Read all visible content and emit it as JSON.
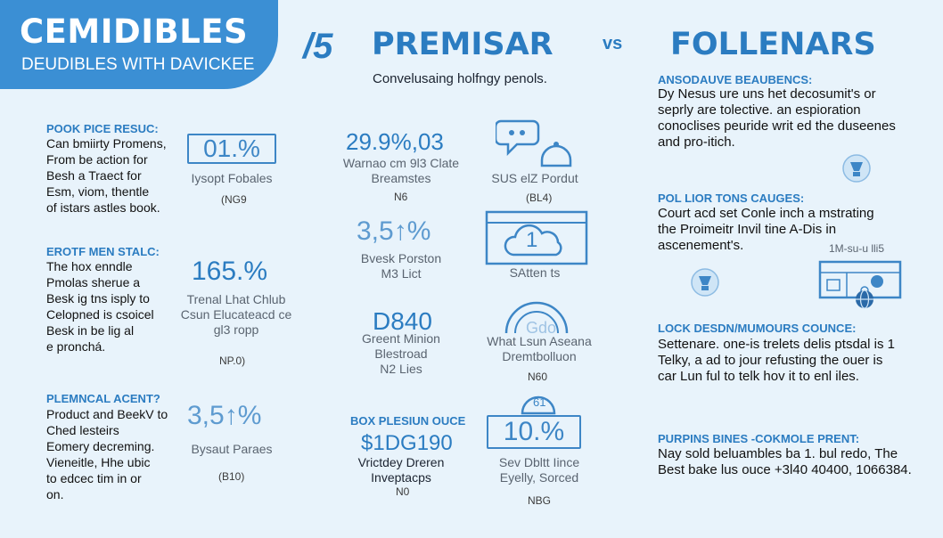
{
  "header": {
    "banner_title": "CEMIDIBLES",
    "banner_subtitle": "DEUDIBLES WITH DAVICKEE",
    "vs_big": "/5",
    "left_title": "PREMISAR",
    "vs_small": "vs",
    "right_title": "FOLLENARS",
    "subtitle": "Convelusaing holfngy penols."
  },
  "left_sections": [
    {
      "heading": "POOK PICE RESUC:",
      "lines": [
        "Can bmiirty Promens,",
        "From be action for",
        "Besh a Traect for",
        "Esm, viom, thentle",
        "of istars astles book."
      ]
    },
    {
      "heading": "EROTF MEN STALC:",
      "lines": [
        "The hox enndle",
        "Pmolas sherue a",
        "Besk ig tns isply to",
        "Celopned is csoicel",
        "Besk in be lig al",
        "e pronchá."
      ]
    },
    {
      "heading": "PLEMNCAL ACENT?",
      "lines": [
        "Product and BeekV to",
        "Ched lesteirs",
        "Eomery decreming.",
        "Vieneitle, Hhe ubic",
        "to edcec tim in or",
        "on."
      ]
    }
  ],
  "col2": [
    {
      "value": "01.%",
      "caption": "Iysopt Fobales",
      "code": "(NG9"
    },
    {
      "value": "165.%",
      "caption": [
        "Trenal Lhat Chlub",
        "Csun Elucateacd ce",
        "gl3 ropp"
      ],
      "code": "NP.0)"
    },
    {
      "value": "3,5↑%",
      "caption": "Bysaut Paraes",
      "code": "(B10)"
    }
  ],
  "col3": [
    {
      "value": "29.9%,03",
      "caption": [
        "Warnao cm 9l3 Clate",
        "Breamstes"
      ],
      "code": "N6"
    },
    {
      "value": "3,5↑%",
      "caption": [
        "Bvesk Porston",
        "M3 Lict"
      ],
      "code": ""
    },
    {
      "value": "D840",
      "caption": [
        "Greent Minion",
        "Blestroad",
        "N2 Lies"
      ],
      "code": ""
    },
    {
      "heading": "BOX PLESIUN OUCE",
      "value": "$1DG190",
      "caption": [
        "Vrictdey Dreren",
        "Inveptacps"
      ],
      "code": "N0"
    }
  ],
  "col4": [
    {
      "caption": "SUS elZ Pordut",
      "code": "(BL4)"
    },
    {
      "value": "1",
      "caption": "SAtten ts",
      "code": ""
    },
    {
      "value": "Gdo",
      "caption": [
        "What Lsun Aseana",
        "Dremtbolluon"
      ],
      "code": "N60"
    },
    {
      "value": "10.%",
      "badge": "61",
      "caption": [
        "Sev Dbltt Iince",
        "Eyelly, Sorced"
      ],
      "code": "NBG"
    }
  ],
  "right_sections": [
    {
      "heading": "ANSODAUVE BEAUBENCS:",
      "lines": [
        "Dy Nesus ure uns het decosumit's or",
        "seprly are tolective. an espioration",
        "conoclises peuride writ ed the duseenes",
        "and pro-itich."
      ]
    },
    {
      "heading": "POL LIOR TONS CAUGES:",
      "lines": [
        "Court acd set Conle inch a mstrating",
        "the Proimeitr Invil tine A-Dis in",
        "ascenement's."
      ]
    },
    {
      "heading": "LOCK DESDN/MUMOURS COUNCE:",
      "lines": [
        "Settenare. one-is trelets delis ptsdal is 1",
        "Telky, a ad to jour refusting the ouer is",
        "car Lun ful to telk hov it to enl iles."
      ]
    },
    {
      "heading": "PURPINS BINES -COKMOLE PRENT:",
      "lines": [
        "Nay sold beluambles ba 1. bul redo, The",
        "Best bake lus ouce +3l40 40400, 1066384."
      ]
    }
  ],
  "right_extra": {
    "small_label": "1M-su-u lli5"
  },
  "colors": {
    "accent": "#2b7cc1",
    "banner": "#3b8fd4",
    "background": "#e8f3fb"
  },
  "icons": [
    "speech-bubble-icon",
    "bell-icon",
    "cloud-window-icon",
    "gauge-icon",
    "lightbulb-icon",
    "dashboard-icon",
    "globe-icon"
  ]
}
